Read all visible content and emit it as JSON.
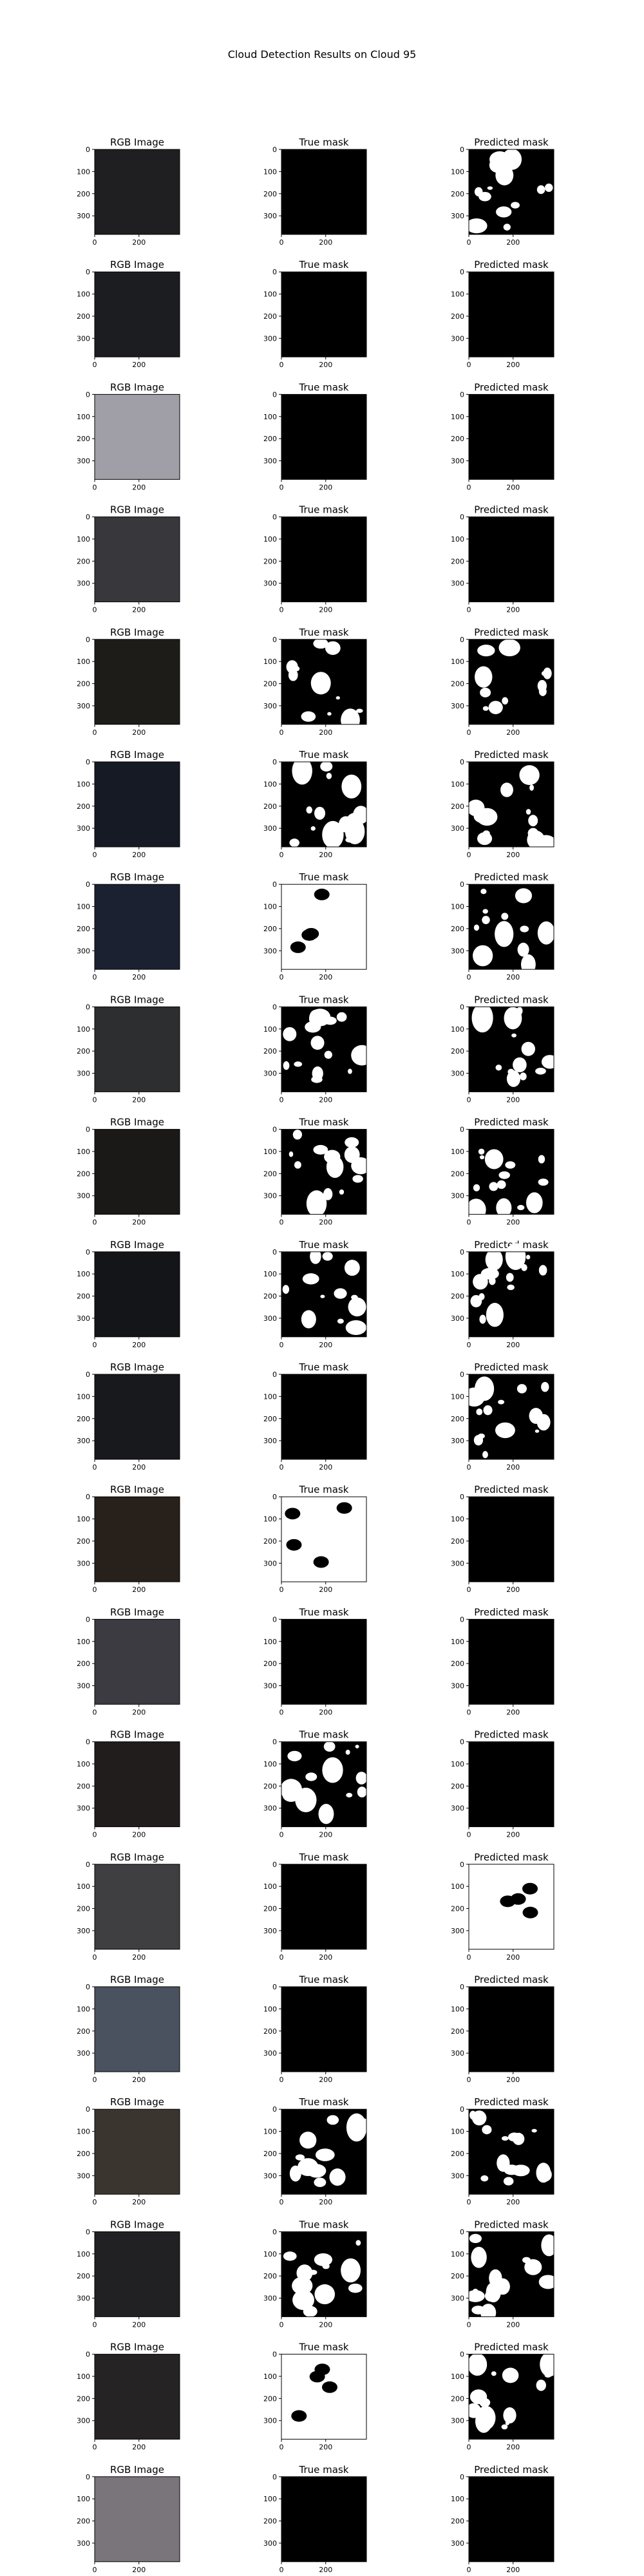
{
  "suptitle": "Cloud Detection Results on Cloud 95",
  "chart_data": {
    "type": "image_grid",
    "rows": 20,
    "columns": [
      "RGB Image",
      "True mask",
      "Predicted mask"
    ],
    "x_ticks": [
      0,
      200
    ],
    "y_ticks": [
      0,
      100,
      200,
      300
    ],
    "image_extent": [
      0,
      384
    ],
    "rgb_colors": [
      "#1f1f22",
      "#1c1d20",
      "#a09ea6",
      "#38373c",
      "#1d1c18",
      "#161a24",
      "#1b2130",
      "#2c2e30",
      "#1a1918",
      "#141518",
      "#17191c",
      "#27201b",
      "#3c3b42",
      "#211d1c",
      "#3f3e40",
      "#4a5260",
      "#3b3530",
      "#212124",
      "#262324",
      "#7a757a"
    ],
    "true_mask_fill": [
      "none",
      "none",
      "none",
      "none",
      "partial",
      "partial",
      "mostly",
      "partial",
      "partial",
      "partial",
      "none",
      "mostly",
      "none",
      "partial",
      "none",
      "none",
      "partial",
      "partial",
      "mostly",
      "none"
    ],
    "pred_mask_fill": [
      "partial",
      "none",
      "none",
      "none",
      "partial",
      "partial",
      "partial",
      "partial",
      "partial",
      "partial",
      "partial",
      "none",
      "none",
      "none",
      "mostly",
      "none",
      "partial",
      "partial",
      "partial",
      "none"
    ]
  }
}
